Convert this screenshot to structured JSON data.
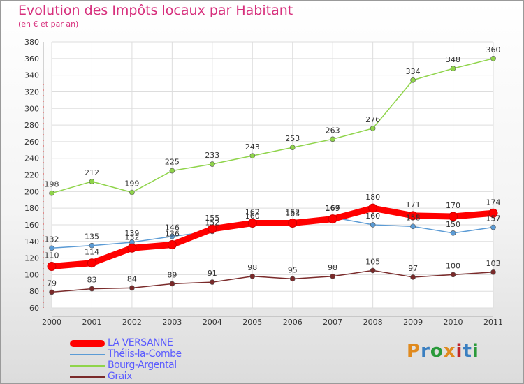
{
  "header": {
    "title": "Evolution des Impôts locaux par Habitant",
    "subtitle": "(en € et par an)"
  },
  "logo": {
    "text": "Proxiti",
    "colors": [
      "#e08a1e",
      "#3a7fc1",
      "#2a9a3a",
      "#e08a1e",
      "#c0252b",
      "#3a7fc1",
      "#2a9a3a"
    ]
  },
  "chart_data": {
    "type": "line",
    "title": "Evolution des Impôts locaux par Habitant",
    "subtitle": "(en € et par an)",
    "x": [
      "2000",
      "2001",
      "2002",
      "2003",
      "2004",
      "2005",
      "2006",
      "2007",
      "2008",
      "2009",
      "2010",
      "2011"
    ],
    "ylim": [
      60,
      380
    ],
    "yticks": [
      60,
      80,
      100,
      120,
      140,
      160,
      180,
      200,
      220,
      240,
      260,
      280,
      300,
      320,
      340,
      360,
      380
    ],
    "grid": true,
    "legend_position": "bottom-left",
    "series": [
      {
        "name": "Graix",
        "color": "#7a2a2a",
        "values": [
          79,
          83,
          84,
          89,
          91,
          98,
          95,
          98,
          105,
          97,
          100,
          103
        ]
      },
      {
        "name": "Bourg-Argental",
        "color": "#8fd44a",
        "values": [
          198,
          212,
          199,
          225,
          233,
          243,
          253,
          263,
          276,
          334,
          348,
          360
        ]
      },
      {
        "name": "Thélis-la-Combe",
        "color": "#5b9bd5",
        "values": [
          132,
          135,
          139,
          146,
          152,
          160,
          163,
          169,
          160,
          158,
          150,
          157
        ]
      },
      {
        "name": "LA VERSANNE",
        "color": "#ff0000",
        "values": [
          110,
          114,
          132,
          136,
          155,
          162,
          162,
          167,
          180,
          171,
          170,
          174
        ]
      }
    ],
    "legend_order": [
      "LA VERSANNE",
      "Thélis-la-Combe",
      "Bourg-Argental",
      "Graix"
    ],
    "legend_label_color": "#5a5aff"
  }
}
